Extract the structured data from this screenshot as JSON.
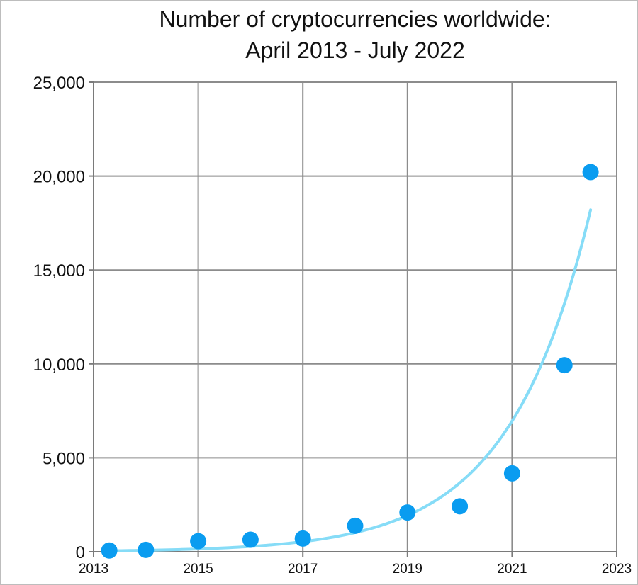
{
  "chart_data": {
    "type": "scatter",
    "title_line1": "Number of cryptocurrencies worldwide:",
    "title_line2": "April 2013 - July 2022",
    "xlabel": "",
    "ylabel": "",
    "xlim": [
      2013,
      2023
    ],
    "ylim": [
      0,
      25000
    ],
    "x_ticks": [
      2013,
      2015,
      2017,
      2019,
      2021,
      2023
    ],
    "x_tick_labels": [
      "2013",
      "2015",
      "2017",
      "2019",
      "2021",
      "2023"
    ],
    "y_ticks": [
      0,
      5000,
      10000,
      15000,
      20000,
      25000
    ],
    "y_tick_labels": [
      "0",
      "5,000",
      "10,000",
      "15,000",
      "20,000",
      "25,000"
    ],
    "grid": true,
    "legend": "none",
    "series": [
      {
        "x": [
          2013.3,
          2014.0,
          2015.0,
          2016.0,
          2017.0,
          2018.0,
          2019.0,
          2020.0,
          2021.0,
          2022.0,
          2022.5
        ],
        "values": [
          66,
          100,
          560,
          640,
          700,
          1380,
          2090,
          2420,
          4170,
          9930,
          20210
        ],
        "color": "#0a9cf0"
      }
    ],
    "trendline": {
      "type": "exponential",
      "x_start": 2013.3,
      "x_end": 2022.5,
      "y_start": 50,
      "y_end": 18200,
      "color": "#86dcf7"
    }
  }
}
